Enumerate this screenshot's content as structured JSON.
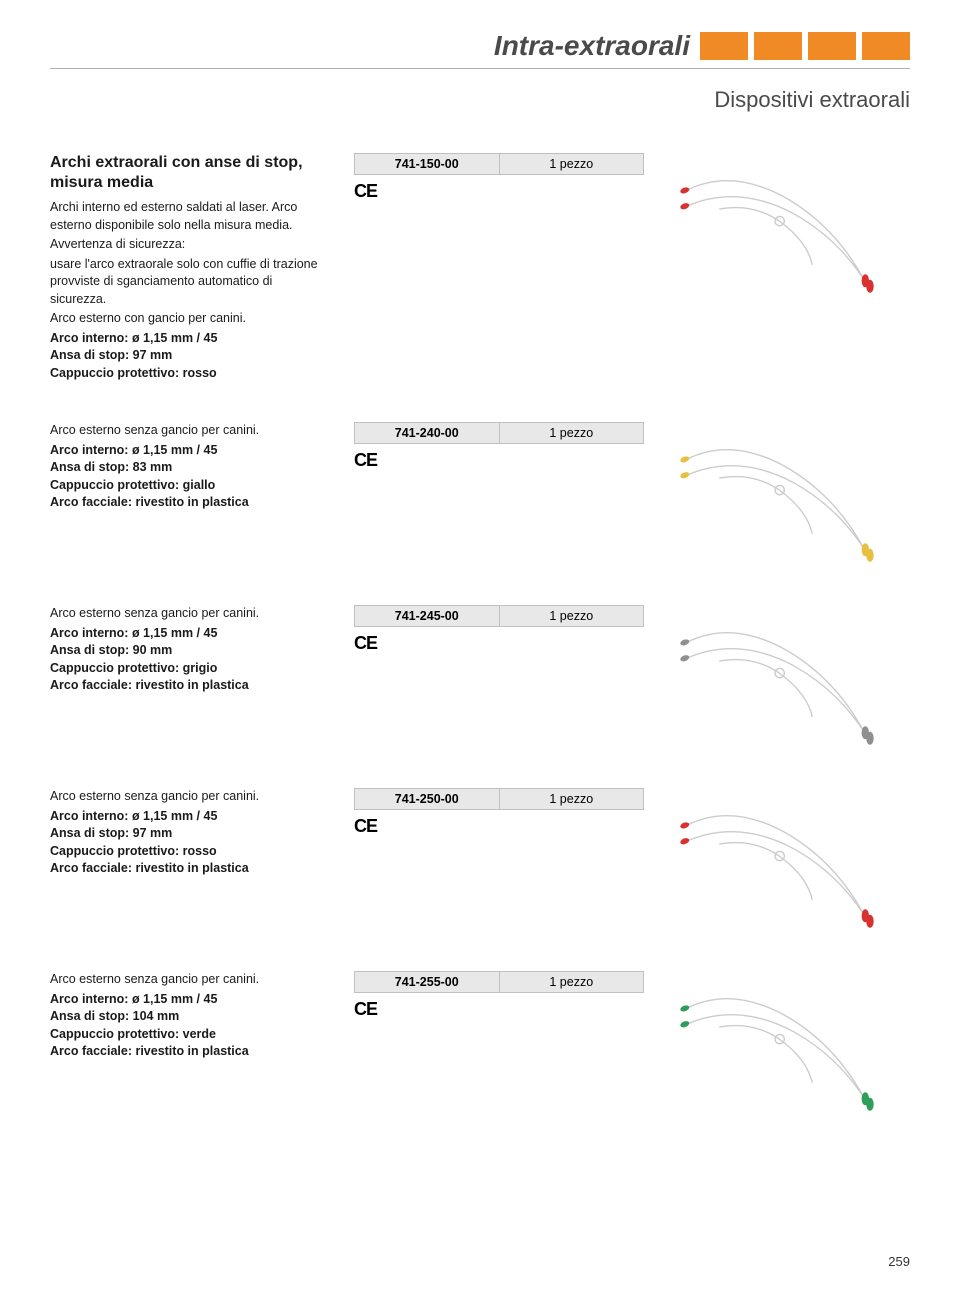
{
  "header": {
    "section_title": "Intra-extraorali",
    "tab_color": "#f08a24",
    "tab_count": 4
  },
  "subtitle": "Dispositivi extraorali",
  "products": [
    {
      "heading": "Archi extraorali con anse di stop, misura media",
      "body_lines": [
        "Archi interno ed esterno saldati al laser. Arco esterno disponibile solo nella misura media.",
        "Avvertenza di sicurezza:",
        "usare l'arco extraorale solo con cuffie di trazione provviste di sganciamento automatico di sicurezza.",
        "Arco esterno con gancio per canini."
      ],
      "bold_lines": [
        "Arco interno: ø 1,15 mm / 45",
        "Ansa di stop: 97 mm",
        "Cappuccio protettivo: rosso"
      ],
      "ref_code": "741-150-00",
      "qty": "1 pezzo",
      "ce": "CE",
      "cap_color": "#d93030"
    },
    {
      "heading": "",
      "body_lines": [
        "Arco esterno senza gancio per canini."
      ],
      "bold_lines": [
        "Arco interno: ø 1,15 mm / 45",
        "Ansa di stop: 83 mm",
        "Cappuccio protettivo: giallo",
        "Arco facciale: rivestito in plastica"
      ],
      "ref_code": "741-240-00",
      "qty": "1 pezzo",
      "ce": "CE",
      "cap_color": "#e8c040"
    },
    {
      "heading": "",
      "body_lines": [
        "Arco esterno senza gancio per canini."
      ],
      "bold_lines": [
        "Arco interno: ø 1,15 mm / 45",
        "Ansa di stop: 90 mm",
        "Cappuccio protettivo: grigio",
        "Arco facciale: rivestito in plastica"
      ],
      "ref_code": "741-245-00",
      "qty": "1 pezzo",
      "ce": "CE",
      "cap_color": "#909090"
    },
    {
      "heading": "",
      "body_lines": [
        "Arco esterno senza gancio per canini."
      ],
      "bold_lines": [
        "Arco interno: ø 1,15 mm / 45",
        "Ansa di stop: 97 mm",
        "Cappuccio protettivo: rosso",
        "Arco facciale: rivestito in plastica"
      ],
      "ref_code": "741-250-00",
      "qty": "1 pezzo",
      "ce": "CE",
      "cap_color": "#d93030"
    },
    {
      "heading": "",
      "body_lines": [
        "Arco esterno senza gancio per canini."
      ],
      "bold_lines": [
        "Arco interno: ø 1,15 mm / 45",
        "Ansa di stop: 104 mm",
        "Cappuccio protettivo: verde",
        "Arco facciale: rivestito in plastica"
      ],
      "ref_code": "741-255-00",
      "qty": "1 pezzo",
      "ce": "CE",
      "cap_color": "#2e9e5b"
    }
  ],
  "page_number": "259",
  "style": {
    "wire_color": "#cccccc",
    "wire_width": 1.5,
    "bg_color": "#ffffff",
    "ref_bg": "#e8e8e8",
    "ref_border": "#c0c0c0",
    "title_color": "#4a4a4a"
  }
}
